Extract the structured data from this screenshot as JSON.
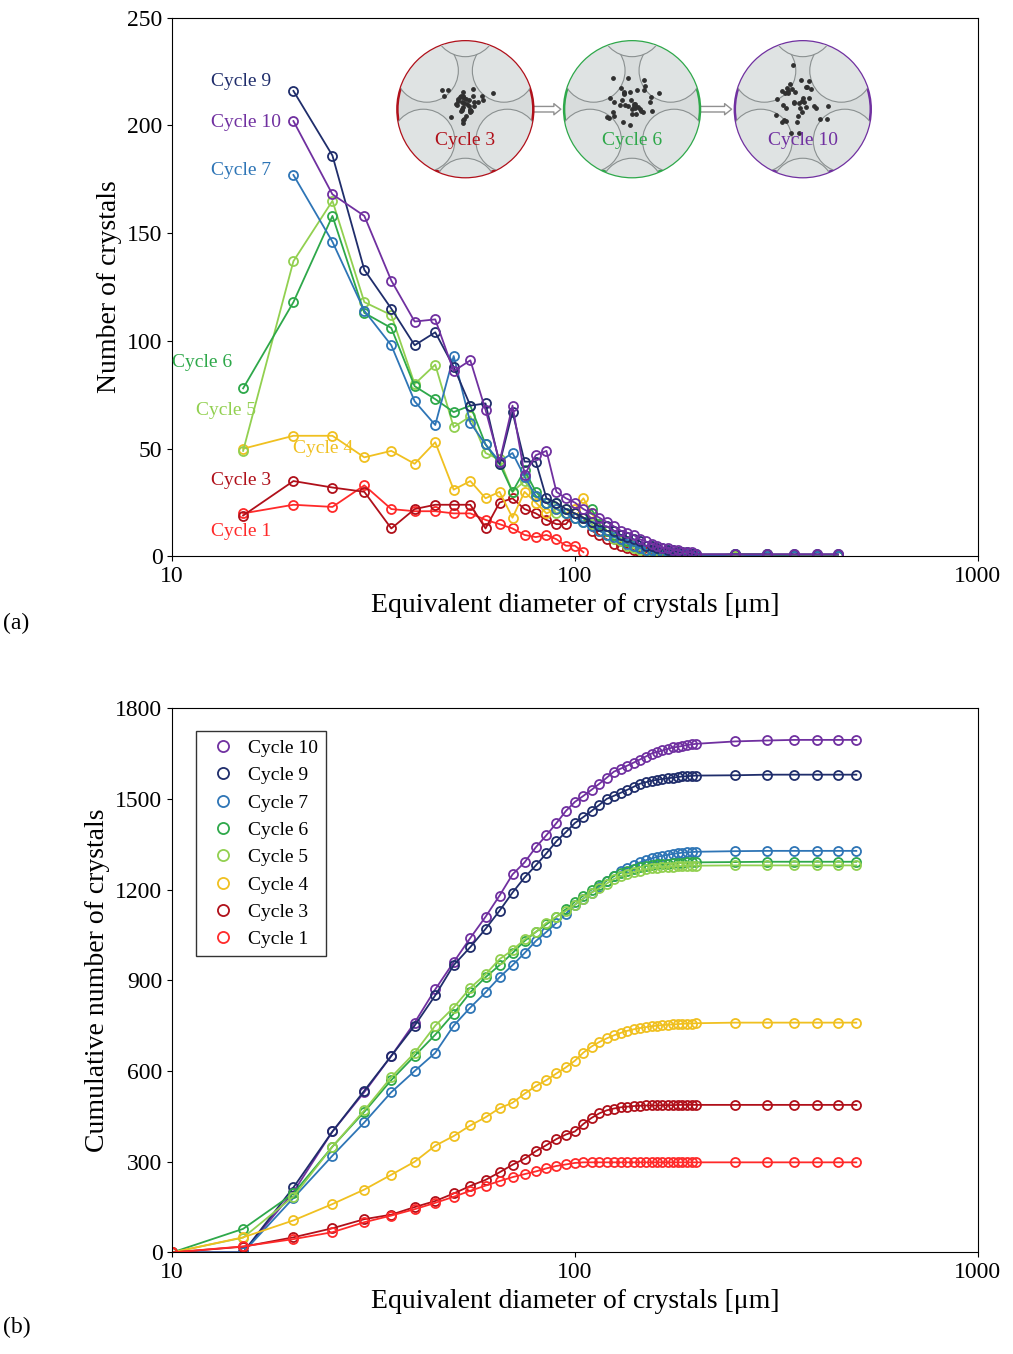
{
  "chart_data": [
    {
      "type": "line",
      "panel_label": "(a)",
      "x_label": "Equivalent diameter of crystals [μm]",
      "y_label": "Number of crystals",
      "log": "x",
      "xlim": [
        10,
        1000
      ],
      "xticks": [
        10,
        100,
        1000
      ],
      "ylim": [
        0,
        250
      ],
      "yticks": [
        0,
        50,
        100,
        150,
        200,
        250
      ],
      "marker": "circle",
      "line_style": "solid",
      "annotations": [
        {
          "text": "Cycle 3"
        },
        {
          "text": "Cycle 6"
        },
        {
          "text": "Cycle 10"
        }
      ],
      "x": [
        15,
        20,
        25,
        30,
        35,
        40,
        45,
        50,
        55,
        60,
        65,
        70,
        75,
        80,
        85,
        90,
        95,
        100,
        105,
        110,
        115,
        120,
        125,
        130,
        135,
        140,
        145,
        150,
        155,
        160,
        165,
        170,
        175,
        180,
        185,
        190,
        195,
        200,
        250,
        300,
        350,
        400,
        450
      ],
      "series": [
        {
          "name": "Cycle 1",
          "color": "#ff2a2a",
          "values": [
            20,
            24,
            23,
            33,
            22,
            21,
            21,
            20,
            20,
            17,
            15,
            13,
            10,
            9,
            10,
            8,
            5,
            5,
            2,
            null,
            null,
            null,
            null,
            null,
            null,
            null,
            null,
            null,
            null,
            null,
            null,
            null,
            null,
            null,
            null,
            null,
            null,
            null,
            null,
            null,
            null,
            null,
            null
          ]
        },
        {
          "name": "Cycle 3",
          "color": "#b0101a",
          "values": [
            19,
            35,
            32,
            30,
            13,
            22,
            24,
            24,
            24,
            13,
            25,
            27,
            22,
            20,
            17,
            15,
            15,
            20,
            18,
            12,
            10,
            8,
            6,
            5,
            4,
            3,
            2,
            2,
            1,
            1,
            1,
            1,
            0,
            0,
            0,
            0,
            0,
            0,
            0,
            0,
            0,
            0,
            0
          ]
        },
        {
          "name": "Cycle 4",
          "color": "#f0c020",
          "values": [
            50,
            56,
            56,
            46,
            49,
            43,
            53,
            31,
            35,
            27,
            30,
            18,
            30,
            25,
            20,
            22,
            20,
            22,
            27,
            20,
            15,
            12,
            10,
            8,
            7,
            5,
            4,
            3,
            3,
            2,
            2,
            1,
            1,
            1,
            1,
            1,
            0,
            0,
            0,
            0,
            0,
            0,
            0
          ]
        },
        {
          "name": "Cycle 5",
          "color": "#92d050",
          "values": [
            49,
            137,
            165,
            118,
            112,
            80,
            89,
            60,
            65,
            48,
            45,
            30,
            35,
            28,
            25,
            20,
            22,
            20,
            18,
            15,
            12,
            10,
            8,
            7,
            5,
            4,
            3,
            3,
            2,
            2,
            1,
            1,
            1,
            1,
            0,
            0,
            0,
            0,
            0,
            0,
            0,
            0,
            0
          ]
        },
        {
          "name": "Cycle 6",
          "color": "#2ea84a",
          "values": [
            78,
            118,
            158,
            113,
            106,
            79,
            73,
            67,
            70,
            52,
            43,
            30,
            40,
            30,
            25,
            25,
            20,
            18,
            16,
            22,
            15,
            12,
            10,
            8,
            7,
            5,
            4,
            3,
            3,
            2,
            2,
            1,
            1,
            1,
            1,
            1,
            0,
            0,
            1,
            1,
            0,
            0,
            0
          ]
        },
        {
          "name": "Cycle 7",
          "color": "#2e75b6",
          "values": [
            null,
            177,
            146,
            114,
            98,
            72,
            61,
            93,
            62,
            52,
            44,
            48,
            37,
            28,
            25,
            22,
            20,
            18,
            16,
            14,
            12,
            10,
            9,
            8,
            6,
            5,
            4,
            3,
            3,
            2,
            2,
            2,
            1,
            1,
            1,
            1,
            1,
            0,
            1,
            0,
            0,
            0,
            0
          ]
        },
        {
          "name": "Cycle 9",
          "color": "#1f2d6b",
          "values": [
            null,
            216,
            186,
            133,
            115,
            98,
            104,
            88,
            70,
            71,
            43,
            67,
            44,
            44,
            27,
            25,
            22,
            20,
            18,
            16,
            14,
            14,
            12,
            10,
            9,
            8,
            7,
            5,
            5,
            4,
            4,
            3,
            3,
            2,
            2,
            2,
            1,
            1,
            1,
            1,
            1,
            1,
            1
          ]
        },
        {
          "name": "Cycle 10",
          "color": "#7030a0",
          "values": [
            null,
            202,
            168,
            158,
            128,
            109,
            110,
            86,
            91,
            68,
            44,
            70,
            38,
            47,
            49,
            30,
            27,
            25,
            22,
            20,
            18,
            16,
            14,
            12,
            11,
            10,
            8,
            7,
            6,
            5,
            4,
            4,
            3,
            3,
            2,
            2,
            2,
            1,
            1,
            1,
            1,
            1,
            1
          ]
        }
      ]
    },
    {
      "type": "line",
      "panel_label": "(b)",
      "x_label": "Equivalent diameter of crystals [μm]",
      "y_label": "Cumulative number of crystals",
      "log": "x",
      "xlim": [
        10,
        1000
      ],
      "xticks": [
        10,
        100,
        1000
      ],
      "ylim": [
        0,
        1800
      ],
      "yticks": [
        0,
        300,
        600,
        900,
        1200,
        1500,
        1800
      ],
      "marker": "circle",
      "line_style": "solid",
      "legend": "upper left",
      "x": [
        10,
        15,
        20,
        25,
        30,
        35,
        40,
        45,
        50,
        55,
        60,
        65,
        70,
        75,
        80,
        85,
        90,
        95,
        100,
        105,
        110,
        115,
        120,
        125,
        130,
        135,
        140,
        145,
        150,
        155,
        160,
        165,
        170,
        175,
        180,
        185,
        190,
        195,
        200,
        250,
        300,
        350,
        400,
        450,
        500
      ],
      "series": [
        {
          "name": "Cycle 10",
          "color": "#7030a0",
          "values": [
            0,
            0,
            200,
            400,
            530,
            650,
            760,
            870,
            960,
            1040,
            1110,
            1180,
            1250,
            1290,
            1340,
            1380,
            1420,
            1460,
            1490,
            1510,
            1530,
            1550,
            1570,
            1590,
            1600,
            1610,
            1620,
            1630,
            1640,
            1650,
            1655,
            1660,
            1665,
            1670,
            1672,
            1675,
            1678,
            1680,
            1682,
            1690,
            1693,
            1695,
            1695,
            1695,
            1695
          ]
        },
        {
          "name": "Cycle 9",
          "color": "#1f2d6b",
          "values": [
            0,
            0,
            215,
            400,
            535,
            650,
            750,
            850,
            950,
            1010,
            1070,
            1130,
            1190,
            1240,
            1280,
            1320,
            1360,
            1390,
            1420,
            1440,
            1460,
            1480,
            1500,
            1510,
            1520,
            1530,
            1540,
            1550,
            1555,
            1560,
            1563,
            1566,
            1568,
            1570,
            1572,
            1574,
            1575,
            1576,
            1577,
            1578,
            1580,
            1580,
            1580,
            1580,
            1580
          ]
        },
        {
          "name": "Cycle 7",
          "color": "#2e75b6",
          "values": [
            0,
            0,
            180,
            320,
            430,
            530,
            600,
            660,
            750,
            810,
            860,
            910,
            950,
            990,
            1030,
            1060,
            1090,
            1120,
            1150,
            1170,
            1190,
            1210,
            1230,
            1245,
            1260,
            1270,
            1280,
            1290,
            1297,
            1303,
            1308,
            1312,
            1315,
            1318,
            1320,
            1322,
            1323,
            1324,
            1325,
            1327,
            1328,
            1328,
            1328,
            1328,
            1328
          ]
        },
        {
          "name": "Cycle 6",
          "color": "#2ea84a",
          "values": [
            0,
            78,
            195,
            350,
            465,
            570,
            650,
            720,
            790,
            860,
            910,
            950,
            990,
            1030,
            1060,
            1085,
            1110,
            1135,
            1160,
            1180,
            1200,
            1215,
            1230,
            1245,
            1255,
            1262,
            1268,
            1274,
            1278,
            1281,
            1283,
            1285,
            1286,
            1287,
            1288,
            1289,
            1290,
            1290,
            1290,
            1291,
            1292,
            1292,
            1292,
            1292,
            1292
          ]
        },
        {
          "name": "Cycle 5",
          "color": "#92d050",
          "values": [
            0,
            49,
            185,
            350,
            470,
            580,
            660,
            750,
            810,
            875,
            920,
            970,
            1000,
            1035,
            1060,
            1090,
            1110,
            1130,
            1150,
            1170,
            1190,
            1205,
            1220,
            1235,
            1245,
            1252,
            1258,
            1263,
            1267,
            1270,
            1272,
            1274,
            1275,
            1276,
            1277,
            1278,
            1278,
            1279,
            1279,
            1280,
            1280,
            1280,
            1280,
            1280,
            1280
          ]
        },
        {
          "name": "Cycle 4",
          "color": "#f0c020",
          "values": [
            0,
            50,
            106,
            160,
            208,
            257,
            300,
            353,
            385,
            420,
            447,
            477,
            495,
            525,
            550,
            570,
            592,
            612,
            634,
            661,
            681,
            696,
            708,
            718,
            726,
            733,
            738,
            742,
            745,
            748,
            750,
            752,
            753,
            754,
            755,
            756,
            757,
            757,
            758,
            760,
            760,
            760,
            760,
            760,
            760
          ]
        },
        {
          "name": "Cycle 3",
          "color": "#b0101a",
          "values": [
            0,
            19,
            50,
            80,
            110,
            125,
            150,
            170,
            195,
            220,
            240,
            265,
            290,
            310,
            335,
            355,
            375,
            390,
            400,
            425,
            445,
            460,
            470,
            476,
            480,
            482,
            484,
            485,
            486,
            486,
            486,
            487,
            487,
            487,
            488,
            488,
            488,
            488,
            488,
            488,
            488,
            488,
            488,
            488,
            488
          ]
        },
        {
          "name": "Cycle 1",
          "color": "#ff2a2a",
          "values": [
            0,
            20,
            44,
            67,
            100,
            122,
            143,
            164,
            184,
            204,
            221,
            236,
            249,
            259,
            268,
            278,
            286,
            291,
            296,
            298,
            298,
            298,
            298,
            298,
            298,
            298,
            298,
            298,
            298,
            298,
            298,
            298,
            298,
            298,
            298,
            298,
            298,
            298,
            298,
            298,
            298,
            298,
            298,
            298,
            298
          ]
        }
      ]
    }
  ]
}
